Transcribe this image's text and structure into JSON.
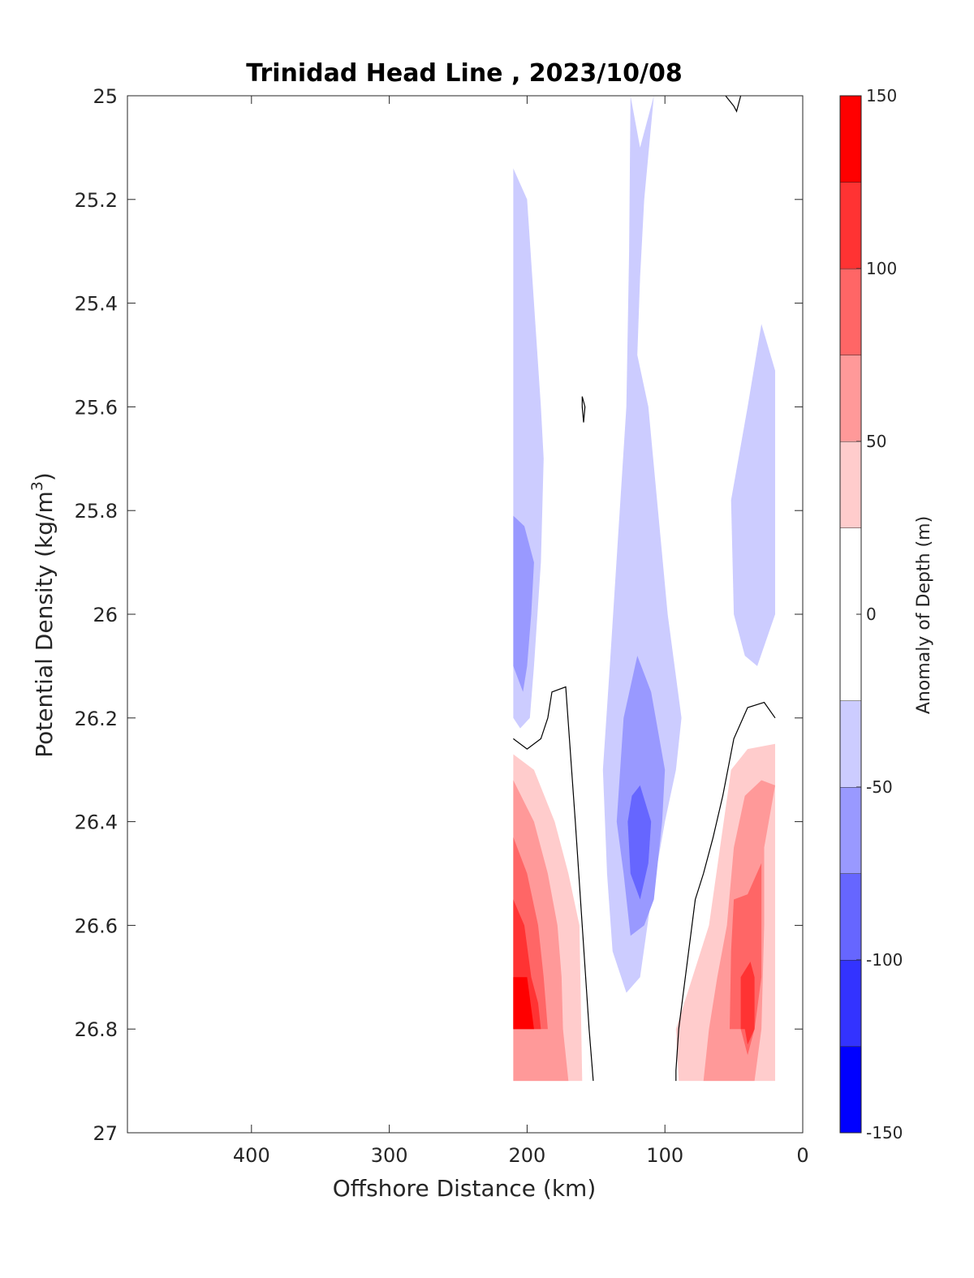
{
  "chart_data": {
    "type": "contour",
    "title": "Trinidad Head Line , 2023/10/08",
    "xlabel": "Offshore Distance (km)",
    "ylabel_main": "Potential Density (kg/m",
    "ylabel_sup": "3",
    "ylabel_close": ")",
    "xlim": [
      490,
      0
    ],
    "ylim": [
      25,
      27
    ],
    "x_ticks": [
      "400",
      "300",
      "200",
      "100",
      "0"
    ],
    "x_tick_values": [
      400,
      300,
      200,
      100,
      0
    ],
    "y_ticks": [
      "25",
      "25.2",
      "25.4",
      "25.6",
      "25.8",
      "26",
      "26.2",
      "26.4",
      "26.6",
      "26.8",
      "27"
    ],
    "y_tick_values": [
      25,
      25.2,
      25.4,
      25.6,
      25.8,
      26,
      26.2,
      26.4,
      26.6,
      26.8,
      27
    ],
    "colorbar": {
      "label": "Anomaly of Depth (m)",
      "min": -150,
      "max": 150,
      "tick_values": [
        150,
        100,
        50,
        0,
        -50,
        -100,
        -150
      ],
      "tick_labels": [
        "150",
        "100",
        "50",
        "0",
        "-50",
        "-100",
        "-150"
      ],
      "levels": [
        -150,
        -125,
        -100,
        -75,
        -50,
        -25,
        25,
        50,
        75,
        100,
        125,
        150
      ],
      "colors": [
        "#0000ff",
        "#3333ff",
        "#6666ff",
        "#9999ff",
        "#ccccff",
        "#ffffff",
        "#ffcccc",
        "#ff9999",
        "#ff6666",
        "#ff3333",
        "#ff0000"
      ]
    },
    "regions": [
      {
        "name": "neg-west-25",
        "level": -25,
        "color": "#ccccff",
        "points": [
          [
            210,
            25.14
          ],
          [
            200,
            25.2
          ],
          [
            195,
            25.4
          ],
          [
            190,
            25.6
          ],
          [
            188,
            25.7
          ],
          [
            190,
            25.9
          ],
          [
            195,
            26.1
          ],
          [
            198,
            26.2
          ],
          [
            205,
            26.22
          ],
          [
            210,
            26.2
          ]
        ]
      },
      {
        "name": "neg-west-50",
        "level": -50,
        "color": "#9999ff",
        "points": [
          [
            210,
            25.81
          ],
          [
            202,
            25.83
          ],
          [
            195,
            25.9
          ],
          [
            197,
            26.0
          ],
          [
            200,
            26.1
          ],
          [
            203,
            26.15
          ],
          [
            210,
            26.1
          ]
        ]
      },
      {
        "name": "neg-center-25",
        "level": -25,
        "color": "#ccccff",
        "points": [
          [
            125,
            25.0
          ],
          [
            118,
            25.1
          ],
          [
            108,
            25.0
          ],
          [
            115,
            25.2
          ],
          [
            118,
            25.35
          ],
          [
            120,
            25.5
          ],
          [
            112,
            25.6
          ],
          [
            105,
            25.8
          ],
          [
            98,
            26.0
          ],
          [
            88,
            26.2
          ],
          [
            92,
            26.3
          ],
          [
            100,
            26.4
          ],
          [
            110,
            26.55
          ],
          [
            118,
            26.7
          ],
          [
            128,
            26.73
          ],
          [
            138,
            26.65
          ],
          [
            142,
            26.5
          ],
          [
            145,
            26.3
          ],
          [
            140,
            26.1
          ],
          [
            128,
            25.6
          ],
          [
            126,
            25.3
          ]
        ]
      },
      {
        "name": "neg-center-50",
        "level": -50,
        "color": "#9999ff",
        "points": [
          [
            120,
            26.08
          ],
          [
            110,
            26.15
          ],
          [
            100,
            26.3
          ],
          [
            102,
            26.4
          ],
          [
            108,
            26.55
          ],
          [
            115,
            26.6
          ],
          [
            125,
            26.62
          ],
          [
            130,
            26.5
          ],
          [
            135,
            26.4
          ],
          [
            130,
            26.2
          ]
        ]
      },
      {
        "name": "neg-center-75",
        "level": -75,
        "color": "#6666ff",
        "points": [
          [
            118,
            26.33
          ],
          [
            110,
            26.4
          ],
          [
            112,
            26.48
          ],
          [
            118,
            26.55
          ],
          [
            125,
            26.5
          ],
          [
            127,
            26.4
          ],
          [
            124,
            26.35
          ]
        ]
      },
      {
        "name": "neg-east-25",
        "level": -25,
        "color": "#ccccff",
        "points": [
          [
            30,
            25.44
          ],
          [
            40,
            25.6
          ],
          [
            52,
            25.78
          ],
          [
            50,
            26.0
          ],
          [
            42,
            26.08
          ],
          [
            33,
            26.1
          ],
          [
            20,
            26.0
          ],
          [
            20,
            25.53
          ]
        ]
      },
      {
        "name": "pos-west-25",
        "level": 25,
        "color": "#ffcccc",
        "points": [
          [
            210,
            26.27
          ],
          [
            195,
            26.3
          ],
          [
            180,
            26.4
          ],
          [
            170,
            26.5
          ],
          [
            162,
            26.6
          ],
          [
            160,
            26.9
          ],
          [
            172,
            26.9
          ],
          [
            210,
            26.9
          ]
        ]
      },
      {
        "name": "pos-west-50",
        "level": 50,
        "color": "#ff9999",
        "points": [
          [
            210,
            26.32
          ],
          [
            195,
            26.4
          ],
          [
            185,
            26.5
          ],
          [
            178,
            26.6
          ],
          [
            175,
            26.7
          ],
          [
            174,
            26.8
          ],
          [
            170,
            26.9
          ],
          [
            210,
            26.9
          ]
        ]
      },
      {
        "name": "pos-west-75",
        "level": 75,
        "color": "#ff6666",
        "points": [
          [
            210,
            26.43
          ],
          [
            200,
            26.5
          ],
          [
            192,
            26.6
          ],
          [
            188,
            26.7
          ],
          [
            185,
            26.8
          ],
          [
            210,
            26.8
          ]
        ]
      },
      {
        "name": "pos-west-100",
        "level": 100,
        "color": "#ff3333",
        "points": [
          [
            210,
            26.55
          ],
          [
            202,
            26.6
          ],
          [
            197,
            26.7
          ],
          [
            192,
            26.75
          ],
          [
            190,
            26.8
          ],
          [
            210,
            26.8
          ]
        ]
      },
      {
        "name": "pos-west-125",
        "level": 125,
        "color": "#ff0000",
        "points": [
          [
            210,
            26.7
          ],
          [
            200,
            26.7
          ],
          [
            195,
            26.8
          ],
          [
            190,
            26.8
          ],
          [
            210,
            26.8
          ]
        ]
      },
      {
        "name": "pos-east-25",
        "level": 25,
        "color": "#ffcccc",
        "points": [
          [
            20,
            26.25
          ],
          [
            40,
            26.26
          ],
          [
            52,
            26.3
          ],
          [
            60,
            26.45
          ],
          [
            68,
            26.6
          ],
          [
            80,
            26.7
          ],
          [
            92,
            26.8
          ],
          [
            90,
            26.9
          ],
          [
            72,
            26.9
          ],
          [
            60,
            26.9
          ],
          [
            45,
            26.9
          ],
          [
            20,
            26.9
          ]
        ]
      },
      {
        "name": "pos-east-50",
        "level": 50,
        "color": "#ff9999",
        "points": [
          [
            20,
            26.33
          ],
          [
            30,
            26.32
          ],
          [
            42,
            26.35
          ],
          [
            50,
            26.45
          ],
          [
            55,
            26.6
          ],
          [
            62,
            26.7
          ],
          [
            68,
            26.8
          ],
          [
            72,
            26.9
          ],
          [
            35,
            26.9
          ],
          [
            30,
            26.8
          ],
          [
            28,
            26.6
          ],
          [
            28,
            26.45
          ]
        ]
      },
      {
        "name": "pos-east-75",
        "level": 75,
        "color": "#ff6666",
        "points": [
          [
            30,
            26.48
          ],
          [
            40,
            26.54
          ],
          [
            50,
            26.55
          ],
          [
            52,
            26.65
          ],
          [
            53,
            26.8
          ],
          [
            45,
            26.8
          ],
          [
            40,
            26.85
          ],
          [
            35,
            26.8
          ],
          [
            30,
            26.7
          ]
        ]
      },
      {
        "name": "pos-east-100",
        "level": 100,
        "color": "#ff3333",
        "points": [
          [
            38,
            26.67
          ],
          [
            45,
            26.7
          ],
          [
            45,
            26.8
          ],
          [
            42,
            26.8
          ],
          [
            40,
            26.83
          ],
          [
            35,
            26.8
          ],
          [
            35,
            26.7
          ]
        ]
      }
    ],
    "contour_lines": [
      {
        "name": "zero-contour-west",
        "level": 0,
        "points": [
          [
            210,
            26.24
          ],
          [
            200,
            26.26
          ],
          [
            190,
            26.24
          ],
          [
            185,
            26.2
          ],
          [
            182,
            26.15
          ],
          [
            172,
            26.14
          ],
          [
            165,
            26.4
          ],
          [
            160,
            26.6
          ],
          [
            155,
            26.8
          ],
          [
            152,
            26.9
          ]
        ]
      },
      {
        "name": "zero-contour-east",
        "level": 0,
        "points": [
          [
            20,
            26.2
          ],
          [
            28,
            26.17
          ],
          [
            40,
            26.18
          ],
          [
            50,
            26.24
          ],
          [
            58,
            26.35
          ],
          [
            65,
            26.43
          ],
          [
            72,
            26.5
          ],
          [
            78,
            26.55
          ],
          [
            90,
            26.8
          ],
          [
            92,
            26.88
          ],
          [
            92,
            26.9
          ]
        ]
      },
      {
        "name": "zero-contour-top",
        "level": 0,
        "points": [
          [
            56,
            25.0
          ],
          [
            50,
            25.02
          ],
          [
            48,
            25.03
          ],
          [
            45,
            25.0
          ]
        ]
      },
      {
        "name": "zero-contour-small",
        "level": 0,
        "points": [
          [
            160,
            25.58
          ],
          [
            158,
            25.6
          ],
          [
            159,
            25.63
          ],
          [
            160,
            25.6
          ],
          [
            160,
            25.58
          ]
        ]
      }
    ]
  }
}
